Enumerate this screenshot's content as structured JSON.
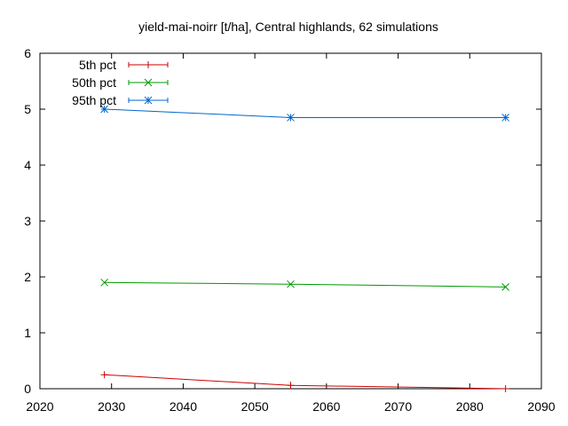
{
  "chart_data": {
    "type": "line",
    "title": "yield-mai-noirr [t/ha], Central highlands, 62 simulations",
    "xlabel": "",
    "ylabel": "",
    "xlim": [
      2020,
      2090
    ],
    "ylim": [
      0,
      6
    ],
    "xticks": [
      2020,
      2030,
      2040,
      2050,
      2060,
      2070,
      2080,
      2090
    ],
    "yticks": [
      0,
      1,
      2,
      3,
      4,
      5,
      6
    ],
    "grid": false,
    "legend_position": "top-left",
    "x": [
      2029,
      2055,
      2085
    ],
    "series": [
      {
        "name": "5th pct",
        "values": [
          0.25,
          0.06,
          0.0
        ],
        "color": "#cc0000",
        "marker": "plus"
      },
      {
        "name": "50th pct",
        "values": [
          1.9,
          1.87,
          1.82
        ],
        "color": "#009900",
        "marker": "cross"
      },
      {
        "name": "95th pct",
        "values": [
          5.0,
          4.85,
          4.85
        ],
        "color": "#0066cc",
        "marker": "star"
      }
    ]
  }
}
